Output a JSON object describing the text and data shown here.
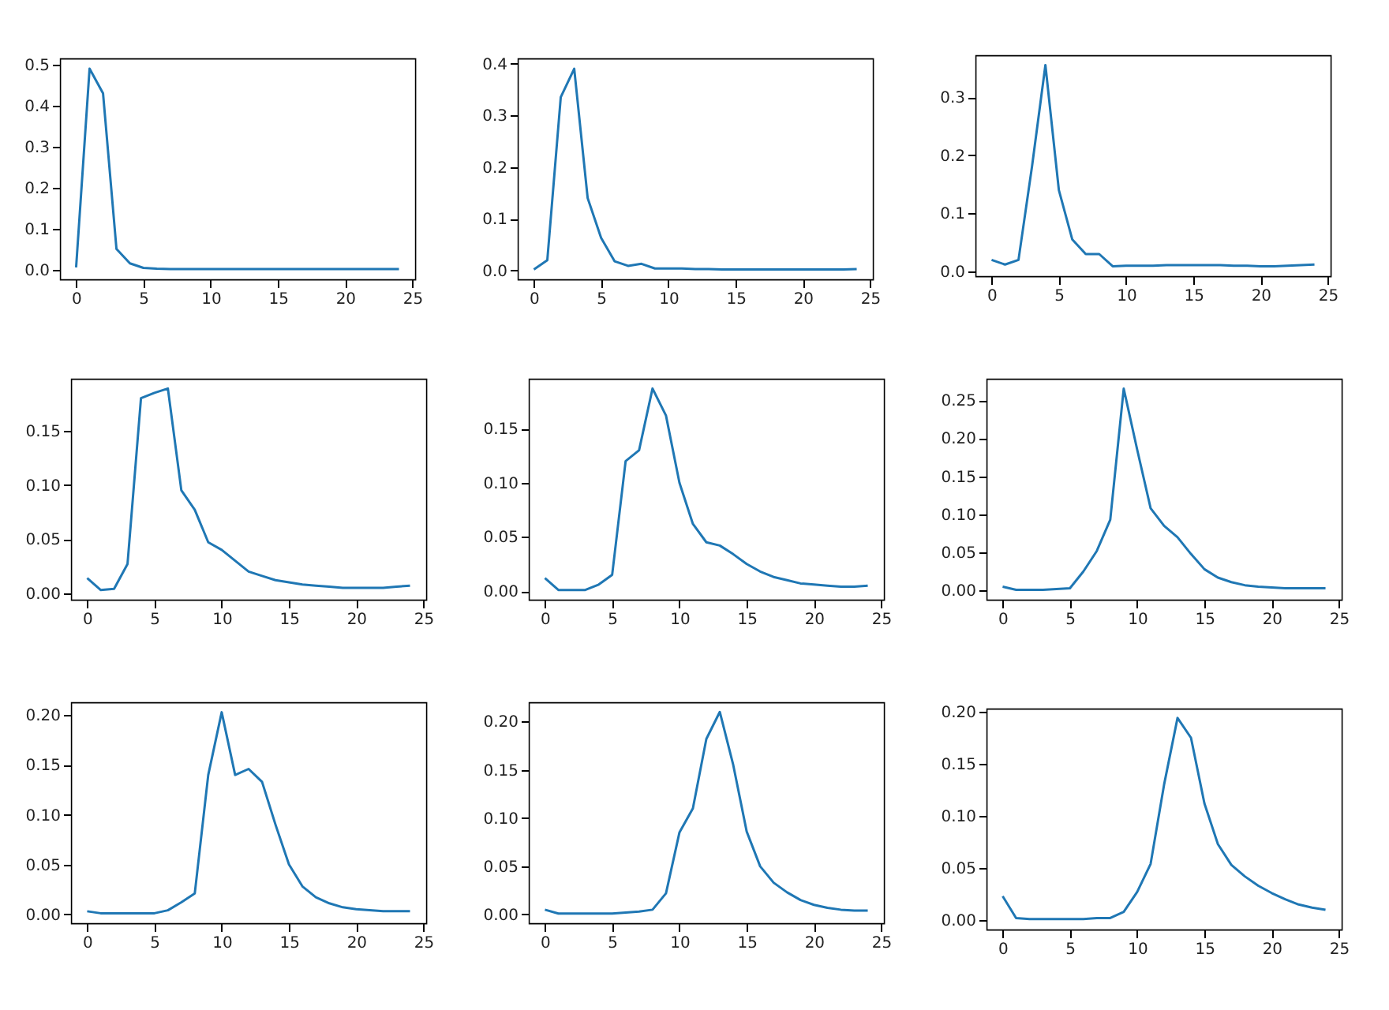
{
  "chart_data": [
    {
      "type": "line",
      "x": [
        0,
        1,
        2,
        3,
        4,
        5,
        6,
        7,
        8,
        9,
        10,
        11,
        12,
        13,
        14,
        15,
        16,
        17,
        18,
        19,
        20,
        21,
        22,
        23,
        24
      ],
      "xlim": [
        -1.2,
        25.2
      ],
      "xticks": [
        0,
        5,
        10,
        15,
        20,
        25
      ],
      "ylim": [
        -0.024,
        0.515
      ],
      "yticks": [
        {
          "value": 0,
          "label": "0.0"
        },
        0.1,
        0.2,
        0.3,
        0.4,
        0.5
      ],
      "series": [
        {
          "color": "#1f77b4",
          "values": [
            0.005,
            0.49,
            0.43,
            0.05,
            0.015,
            0.004,
            0.002,
            0.001,
            0.001,
            0.001,
            0.001,
            0.001,
            0.001,
            0.001,
            0.001,
            0.001,
            0.001,
            0.001,
            0.001,
            0.001,
            0.001,
            0.001,
            0.001,
            0.001,
            0.001
          ]
        }
      ]
    },
    {
      "type": "line",
      "x": [
        0,
        1,
        2,
        3,
        4,
        5,
        6,
        7,
        8,
        9,
        10,
        11,
        12,
        13,
        14,
        15,
        16,
        17,
        18,
        19,
        20,
        21,
        22,
        23,
        24
      ],
      "xlim": [
        -1.2,
        25.2
      ],
      "xticks": [
        0,
        5,
        10,
        15,
        20,
        25
      ],
      "ylim": [
        -0.017,
        0.41
      ],
      "yticks": [
        {
          "value": 0,
          "label": "0.0"
        },
        0.1,
        0.2,
        0.3,
        0.4
      ],
      "series": [
        {
          "color": "#1f77b4",
          "values": [
            0.002,
            0.02,
            0.335,
            0.39,
            0.14,
            0.063,
            0.018,
            0.009,
            0.013,
            0.004,
            0.004,
            0.004,
            0.003,
            0.003,
            0.002,
            0.002,
            0.002,
            0.002,
            0.002,
            0.002,
            0.002,
            0.002,
            0.002,
            0.002,
            0.003
          ]
        }
      ]
    },
    {
      "type": "line",
      "x": [
        0,
        1,
        2,
        3,
        4,
        5,
        6,
        7,
        8,
        9,
        10,
        11,
        12,
        13,
        14,
        15,
        16,
        17,
        18,
        19,
        20,
        21,
        22,
        23,
        24
      ],
      "xlim": [
        -1.2,
        25.2
      ],
      "xticks": [
        0,
        5,
        10,
        15,
        20,
        25
      ],
      "ylim": [
        -0.008,
        0.372
      ],
      "yticks": [
        {
          "value": 0,
          "label": "0.0"
        },
        0.1,
        0.2,
        0.3
      ],
      "series": [
        {
          "color": "#1f77b4",
          "values": [
            0.02,
            0.012,
            0.02,
            0.18,
            0.355,
            0.14,
            0.055,
            0.03,
            0.03,
            0.009,
            0.01,
            0.01,
            0.01,
            0.011,
            0.011,
            0.011,
            0.011,
            0.011,
            0.01,
            0.01,
            0.009,
            0.009,
            0.01,
            0.011,
            0.012
          ]
        }
      ]
    },
    {
      "type": "line",
      "x": [
        0,
        1,
        2,
        3,
        4,
        5,
        6,
        7,
        8,
        9,
        10,
        11,
        12,
        13,
        14,
        15,
        16,
        17,
        18,
        19,
        20,
        21,
        22,
        23,
        24
      ],
      "xlim": [
        -1.2,
        25.2
      ],
      "xticks": [
        0,
        5,
        10,
        15,
        20,
        25
      ],
      "ylim": [
        -0.006,
        0.198
      ],
      "yticks": [
        {
          "value": 0,
          "label": "0.00"
        },
        {
          "value": 0.05,
          "label": "0.05"
        },
        {
          "value": 0.1,
          "label": "0.10"
        },
        {
          "value": 0.15,
          "label": "0.15"
        }
      ],
      "series": [
        {
          "color": "#1f77b4",
          "values": [
            0.014,
            0.003,
            0.004,
            0.027,
            0.18,
            0.185,
            0.189,
            0.095,
            0.077,
            0.047,
            0.04,
            0.03,
            0.02,
            0.016,
            0.012,
            0.01,
            0.008,
            0.007,
            0.006,
            0.005,
            0.005,
            0.005,
            0.005,
            0.006,
            0.007
          ]
        }
      ]
    },
    {
      "type": "line",
      "x": [
        0,
        1,
        2,
        3,
        4,
        5,
        6,
        7,
        8,
        9,
        10,
        11,
        12,
        13,
        14,
        15,
        16,
        17,
        18,
        19,
        20,
        21,
        22,
        23,
        24
      ],
      "xlim": [
        -1.2,
        25.2
      ],
      "xticks": [
        0,
        5,
        10,
        15,
        20,
        25
      ],
      "ylim": [
        -0.008,
        0.196
      ],
      "yticks": [
        {
          "value": 0,
          "label": "0.00"
        },
        {
          "value": 0.05,
          "label": "0.05"
        },
        {
          "value": 0.1,
          "label": "0.10"
        },
        {
          "value": 0.15,
          "label": "0.15"
        }
      ],
      "series": [
        {
          "color": "#1f77b4",
          "values": [
            0.012,
            0.001,
            0.001,
            0.001,
            0.006,
            0.015,
            0.12,
            0.13,
            0.187,
            0.162,
            0.1,
            0.062,
            0.045,
            0.042,
            0.034,
            0.025,
            0.018,
            0.013,
            0.01,
            0.007,
            0.006,
            0.005,
            0.004,
            0.004,
            0.005
          ]
        }
      ]
    },
    {
      "type": "line",
      "x": [
        0,
        1,
        2,
        3,
        4,
        5,
        6,
        7,
        8,
        9,
        10,
        11,
        12,
        13,
        14,
        15,
        16,
        17,
        18,
        19,
        20,
        21,
        22,
        23,
        24
      ],
      "xlim": [
        -1.2,
        25.2
      ],
      "xticks": [
        0,
        5,
        10,
        15,
        20,
        25
      ],
      "ylim": [
        -0.012,
        0.278
      ],
      "yticks": [
        {
          "value": 0,
          "label": "0.00"
        },
        {
          "value": 0.05,
          "label": "0.05"
        },
        {
          "value": 0.1,
          "label": "0.10"
        },
        {
          "value": 0.15,
          "label": "0.15"
        },
        {
          "value": 0.2,
          "label": "0.20"
        },
        {
          "value": 0.25,
          "label": "0.25"
        }
      ],
      "series": [
        {
          "color": "#1f77b4",
          "values": [
            0.005,
            0.001,
            0.001,
            0.001,
            0.002,
            0.003,
            0.025,
            0.052,
            0.093,
            0.265,
            0.185,
            0.108,
            0.085,
            0.07,
            0.048,
            0.028,
            0.017,
            0.011,
            0.007,
            0.005,
            0.004,
            0.003,
            0.003,
            0.003,
            0.003
          ]
        }
      ]
    },
    {
      "type": "line",
      "x": [
        0,
        1,
        2,
        3,
        4,
        5,
        6,
        7,
        8,
        9,
        10,
        11,
        12,
        13,
        14,
        15,
        16,
        17,
        18,
        19,
        20,
        21,
        22,
        23,
        24
      ],
      "xlim": [
        -1.2,
        25.2
      ],
      "xticks": [
        0,
        5,
        10,
        15,
        20,
        25
      ],
      "ylim": [
        -0.009,
        0.213
      ],
      "yticks": [
        {
          "value": 0,
          "label": "0.00"
        },
        {
          "value": 0.05,
          "label": "0.05"
        },
        {
          "value": 0.1,
          "label": "0.10"
        },
        {
          "value": 0.15,
          "label": "0.15"
        },
        {
          "value": 0.2,
          "label": "0.20"
        }
      ],
      "series": [
        {
          "color": "#1f77b4",
          "values": [
            0.003,
            0.001,
            0.001,
            0.001,
            0.001,
            0.001,
            0.004,
            0.012,
            0.021,
            0.14,
            0.203,
            0.14,
            0.146,
            0.133,
            0.09,
            0.05,
            0.028,
            0.017,
            0.011,
            0.007,
            0.005,
            0.004,
            0.003,
            0.003,
            0.003
          ]
        }
      ]
    },
    {
      "type": "line",
      "x": [
        0,
        1,
        2,
        3,
        4,
        5,
        6,
        7,
        8,
        9,
        10,
        11,
        12,
        13,
        14,
        15,
        16,
        17,
        18,
        19,
        20,
        21,
        22,
        23,
        24
      ],
      "xlim": [
        -1.2,
        25.2
      ],
      "xticks": [
        0,
        5,
        10,
        15,
        20,
        25
      ],
      "ylim": [
        -0.009,
        0.22
      ],
      "yticks": [
        {
          "value": 0,
          "label": "0.00"
        },
        {
          "value": 0.05,
          "label": "0.05"
        },
        {
          "value": 0.1,
          "label": "0.10"
        },
        {
          "value": 0.15,
          "label": "0.15"
        },
        {
          "value": 0.2,
          "label": "0.20"
        }
      ],
      "series": [
        {
          "color": "#1f77b4",
          "values": [
            0.005,
            0.001,
            0.001,
            0.001,
            0.001,
            0.001,
            0.002,
            0.003,
            0.005,
            0.022,
            0.085,
            0.11,
            0.182,
            0.21,
            0.155,
            0.086,
            0.05,
            0.033,
            0.023,
            0.015,
            0.01,
            0.007,
            0.005,
            0.004,
            0.004
          ]
        }
      ]
    },
    {
      "type": "line",
      "x": [
        0,
        1,
        2,
        3,
        4,
        5,
        6,
        7,
        8,
        9,
        10,
        11,
        12,
        13,
        14,
        15,
        16,
        17,
        18,
        19,
        20,
        21,
        22,
        23,
        24
      ],
      "xlim": [
        -1.2,
        25.2
      ],
      "xticks": [
        0,
        5,
        10,
        15,
        20,
        25
      ],
      "ylim": [
        -0.009,
        0.203
      ],
      "yticks": [
        {
          "value": 0,
          "label": "0.00"
        },
        {
          "value": 0.05,
          "label": "0.05"
        },
        {
          "value": 0.1,
          "label": "0.10"
        },
        {
          "value": 0.15,
          "label": "0.15"
        },
        {
          "value": 0.2,
          "label": "0.20"
        }
      ],
      "series": [
        {
          "color": "#1f77b4",
          "values": [
            0.023,
            0.002,
            0.001,
            0.001,
            0.001,
            0.001,
            0.001,
            0.002,
            0.002,
            0.008,
            0.027,
            0.054,
            0.13,
            0.194,
            0.175,
            0.112,
            0.073,
            0.053,
            0.042,
            0.033,
            0.026,
            0.02,
            0.015,
            0.012,
            0.01
          ]
        }
      ]
    }
  ]
}
